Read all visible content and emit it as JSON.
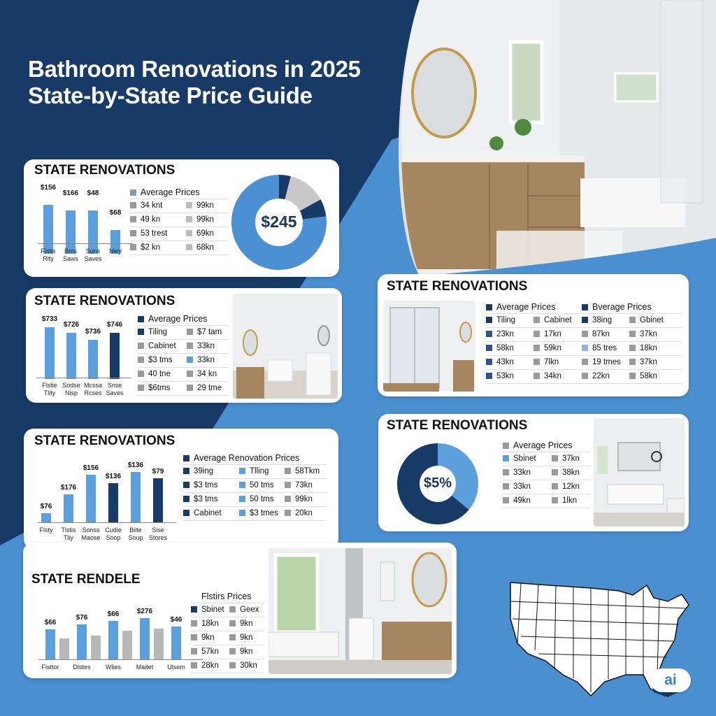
{
  "page": {
    "title_line1": "Bathroom Renovations in 2025",
    "title_line2": "State-by-State Price Guide",
    "ai_badge": "ai"
  },
  "colors": {
    "navy": "#173a66",
    "blue": "#4a90d2",
    "light_blue": "#5b9fdc",
    "dark_navy": "#1b3557",
    "grey": "#b8b8b8"
  },
  "card1": {
    "title": "STATE RENOVATIONS",
    "bars": [
      {
        "value": "$156",
        "label": "Flstis\nRlty",
        "level": 0.88
      },
      {
        "value": "$166",
        "label": "Bms\nSaws",
        "level": 0.77
      },
      {
        "value": "$48",
        "label": "Suns\nSaves",
        "level": 0.77
      },
      {
        "value": "$68",
        "label": "Niey",
        "level": 0.42
      }
    ],
    "legend_title": "Average Prices",
    "rows": [
      [
        "34 knt",
        "99kn"
      ],
      [
        "49 kn",
        "99kn"
      ],
      [
        "53 trest",
        "69kn"
      ],
      [
        "$2 kn",
        "68kn"
      ]
    ],
    "donut_value": "$245",
    "donut_slices": [
      0.04,
      0.13,
      0.06,
      0.77
    ]
  },
  "card2": {
    "title": "STATE RENOVATIONS",
    "bars": [
      {
        "value": "$733",
        "label": "Flstie\nTlity",
        "level": 0.95
      },
      {
        "value": "$726",
        "label": "Sodse\nNisp",
        "level": 0.85
      },
      {
        "value": "$736",
        "label": "Mcssa\nRcses",
        "level": 0.72
      },
      {
        "value": "$746",
        "label": "Snse\nSaves",
        "level": 0.85
      }
    ],
    "legend_title": "Average Prices",
    "rows": [
      [
        "Tiling",
        "$7 tam"
      ],
      [
        "Cabinet",
        "33kn"
      ],
      [
        "$3 tms",
        "33kn"
      ],
      [
        "40 tne",
        "34 kn"
      ],
      [
        "$6tms",
        "29 tme"
      ]
    ]
  },
  "card3": {
    "title": "STATE RENOVATIONS",
    "header_left": "Average Prices",
    "header_right": "Bverage Prices",
    "rows": [
      [
        "Tiling",
        "Cabinet",
        "38ing",
        "Gbinet"
      ],
      [
        "23kn",
        "17kn",
        "87kn",
        "37kn"
      ],
      [
        "58kn",
        "59kn",
        "85 tres",
        "18kn"
      ],
      [
        "43kn",
        "7lkn",
        "19 tmes",
        "37kn"
      ],
      [
        "53kn",
        "34kn",
        "22kn",
        "58kn"
      ]
    ]
  },
  "card4": {
    "title": "STATE RENOVATIONS",
    "bars": [
      {
        "value": "$76",
        "label": "Flsty",
        "level": 0.18
      },
      {
        "value": "$176",
        "label": "Tlstis\nTliy",
        "level": 0.55
      },
      {
        "value": "$156",
        "label": "Sonss\nMaose",
        "level": 0.95
      },
      {
        "value": "$136",
        "label": "Cudie\nSoop",
        "level": 0.78
      },
      {
        "value": "$136",
        "label": "Biite\nSoup",
        "level": 1.0
      },
      {
        "value": "$79",
        "label": "Sise\nStores",
        "level": 0.88
      }
    ],
    "legend_title": "Average Renovation Prices",
    "rows": [
      [
        "39ing",
        "Tlling",
        "58Tkm"
      ],
      [
        "$3 tms",
        "50 tms",
        "73kn"
      ],
      [
        "$3 tms",
        "50 tms",
        "99kn"
      ],
      [
        "Cabinet",
        "$3 tmes",
        "20kn"
      ]
    ]
  },
  "card5": {
    "title": "STATE RENOVATIONS",
    "donut_value": "$5%",
    "donut_slices": [
      0.36,
      0.64
    ],
    "legend_title": "Average Prices",
    "rows": [
      [
        "Sbinet",
        "37kn"
      ],
      [
        "33kn",
        "38kn"
      ],
      [
        "33kn",
        "12kn"
      ],
      [
        "49kn",
        "1lkn"
      ]
    ]
  },
  "card6": {
    "title": "STATE RENDELE",
    "bars": [
      {
        "value": "$66",
        "label": "Fisttor",
        "level": 0.78,
        "grey_level": 0.55
      },
      {
        "value": "$76",
        "label": "Dlstes",
        "level": 0.9,
        "grey_level": 0.62
      },
      {
        "value": "$66",
        "label": "Wlies",
        "level": 1.0,
        "grey_level": 0.75
      },
      {
        "value": "$276",
        "label": "Maitet",
        "level": 1.08,
        "grey_level": 0.8
      },
      {
        "value": "$46",
        "label": "Ulsem",
        "level": 0.85,
        "grey_level": 0
      }
    ],
    "legend_title": "Flstirs Prices",
    "rows": [
      [
        "Sbinet",
        "Geex"
      ],
      [
        "18kn",
        "9kn"
      ],
      [
        "9kn",
        "9kn"
      ],
      [
        "57kn",
        "9kn"
      ],
      [
        "28kn",
        "30kn"
      ]
    ]
  }
}
